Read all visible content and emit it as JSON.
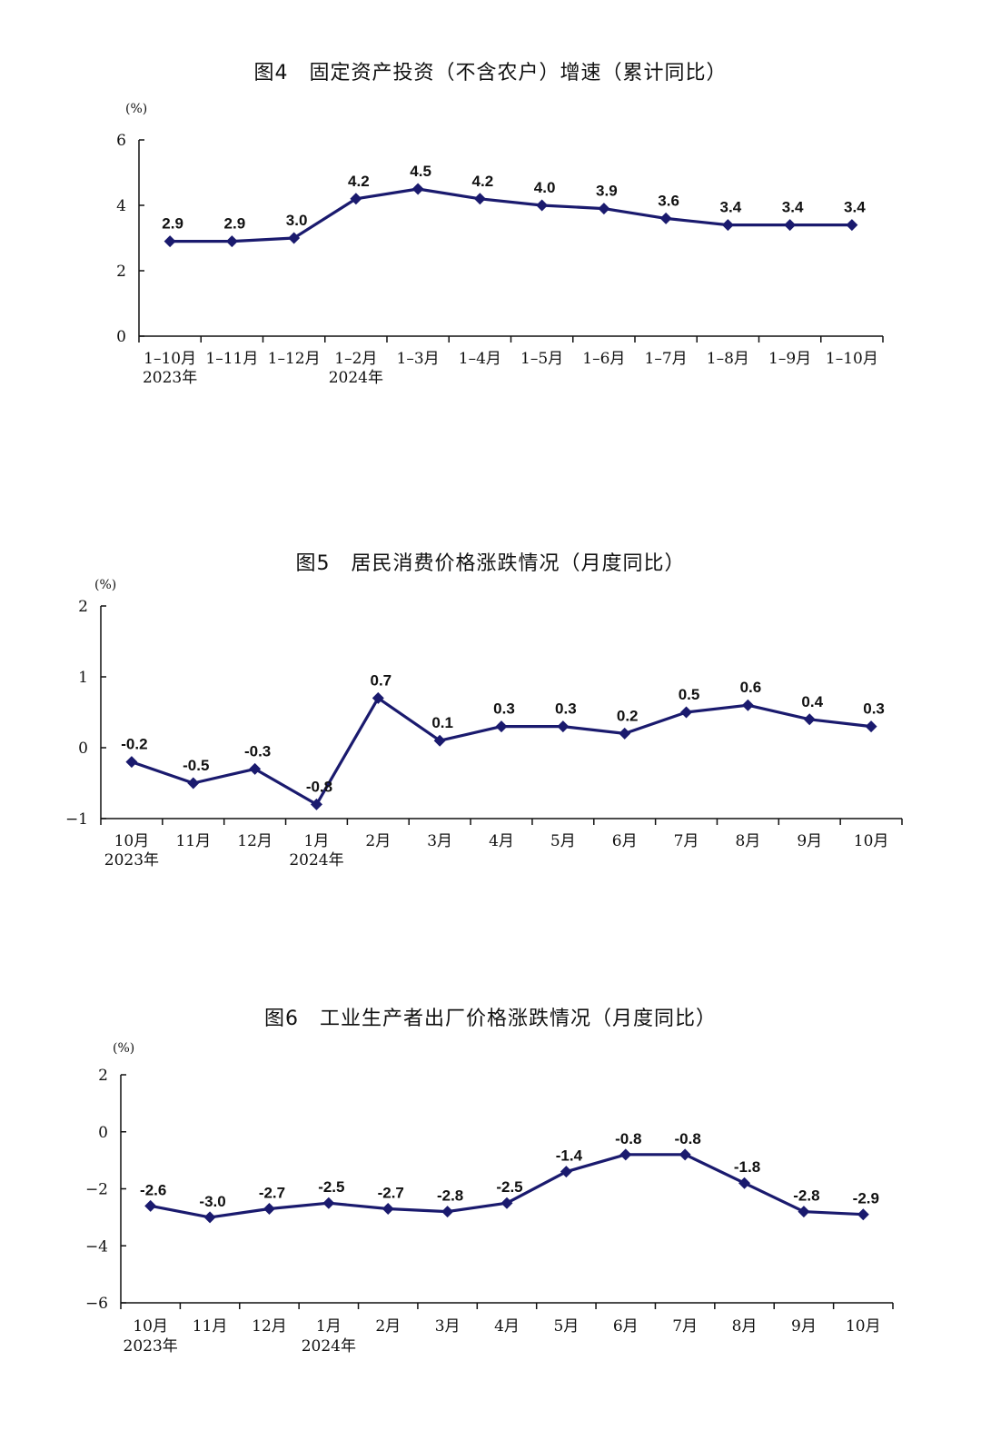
{
  "chart_data": [
    {
      "type": "line",
      "title": "图4　固定资产投资（不含农户）增速（累计同比）",
      "unit": "(%)",
      "categories": [
        "1–10月",
        "1–11月",
        "1–12月",
        "1–2月",
        "1–3月",
        "1–4月",
        "1–5月",
        "1–6月",
        "1–7月",
        "1–8月",
        "1–9月",
        "1–10月"
      ],
      "year_labels": [
        {
          "index": 0,
          "text": "2023年"
        },
        {
          "index": 3,
          "text": "2024年"
        }
      ],
      "values": [
        2.9,
        2.9,
        3.0,
        4.2,
        4.5,
        4.2,
        4.0,
        3.9,
        3.6,
        3.4,
        3.4,
        3.4
      ],
      "value_labels": [
        "2.9",
        "2.9",
        "3.0",
        "4.2",
        "4.5",
        "4.2",
        "4.0",
        "3.9",
        "3.6",
        "3.4",
        "3.4",
        "3.4"
      ],
      "yticks": [
        0,
        2,
        4,
        6
      ],
      "ytick_labels": [
        "0",
        "2",
        "4",
        "6"
      ],
      "ylim": [
        0,
        6
      ],
      "line_color": "#1a1a6e",
      "grid": false
    },
    {
      "type": "line",
      "title": "图5　居民消费价格涨跌情况（月度同比）",
      "unit": "(%)",
      "categories": [
        "10月",
        "11月",
        "12月",
        "1月",
        "2月",
        "3月",
        "4月",
        "5月",
        "6月",
        "7月",
        "8月",
        "9月",
        "10月"
      ],
      "year_labels": [
        {
          "index": 0,
          "text": "2023年"
        },
        {
          "index": 3,
          "text": "2024年"
        }
      ],
      "values": [
        -0.2,
        -0.5,
        -0.3,
        -0.8,
        0.7,
        0.1,
        0.3,
        0.3,
        0.2,
        0.5,
        0.6,
        0.4,
        0.3
      ],
      "value_labels": [
        "-0.2",
        "-0.5",
        "-0.3",
        "-0.8",
        "0.7",
        "0.1",
        "0.3",
        "0.3",
        "0.2",
        "0.5",
        "0.6",
        "0.4",
        "0.3"
      ],
      "yticks": [
        -1,
        0,
        1,
        2
      ],
      "ytick_labels": [
        "−1",
        "0",
        "1",
        "2"
      ],
      "ylim": [
        -1,
        2
      ],
      "line_color": "#1a1a6e",
      "grid": false
    },
    {
      "type": "line",
      "title": "图6　工业生产者出厂价格涨跌情况（月度同比）",
      "unit": "(%)",
      "categories": [
        "10月",
        "11月",
        "12月",
        "1月",
        "2月",
        "3月",
        "4月",
        "5月",
        "6月",
        "7月",
        "8月",
        "9月",
        "10月"
      ],
      "year_labels": [
        {
          "index": 0,
          "text": "2023年"
        },
        {
          "index": 3,
          "text": "2024年"
        }
      ],
      "values": [
        -2.6,
        -3.0,
        -2.7,
        -2.5,
        -2.7,
        -2.8,
        -2.5,
        -1.4,
        -0.8,
        -0.8,
        -1.8,
        -2.8,
        -2.9
      ],
      "value_labels": [
        "-2.6",
        "-3.0",
        "-2.7",
        "-2.5",
        "-2.7",
        "-2.8",
        "-2.5",
        "-1.4",
        "-0.8",
        "-0.8",
        "-1.8",
        "-2.8",
        "-2.9"
      ],
      "yticks": [
        -6,
        -4,
        -2,
        0,
        2
      ],
      "ytick_labels": [
        "−6",
        "−4",
        "−2",
        "0",
        "2"
      ],
      "ylim": [
        -6,
        2
      ],
      "line_color": "#1a1a6e",
      "grid": false
    }
  ]
}
